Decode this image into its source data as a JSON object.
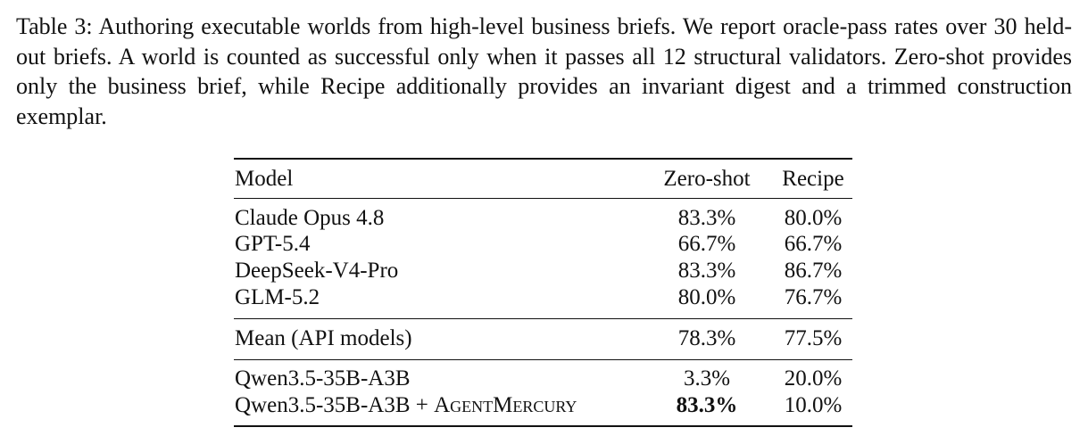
{
  "caption": {
    "label": "Table 3:",
    "text": "Authoring executable worlds from high-level business briefs. We report oracle-pass rates over 30 held-out briefs. A world is counted as successful only when it passes all 12 structural validators. Zero-shot provides only the business brief, while Recipe additionally provides an invariant digest and a trimmed construction exemplar."
  },
  "table": {
    "header": [
      "Model",
      "Zero-shot",
      "Recipe"
    ],
    "groups": [
      [
        [
          "Claude Opus 4.8",
          "83.3%",
          "80.0%"
        ],
        [
          "GPT-5.4",
          "66.7%",
          "66.7%"
        ],
        [
          "DeepSeek-V4-Pro",
          "83.3%",
          "86.7%"
        ],
        [
          "GLM-5.2",
          "80.0%",
          "76.7%"
        ]
      ],
      [
        [
          "Mean (API models)",
          "78.3%",
          "77.5%"
        ]
      ],
      [
        [
          "Qwen3.5-35B-A3B",
          "3.3%",
          "20.0%"
        ],
        [
          [
            "Qwen3.5-35B-A3B +",
            "AgentMercury"
          ],
          "83.3%",
          "10.0%"
        ]
      ]
    ]
  }
}
